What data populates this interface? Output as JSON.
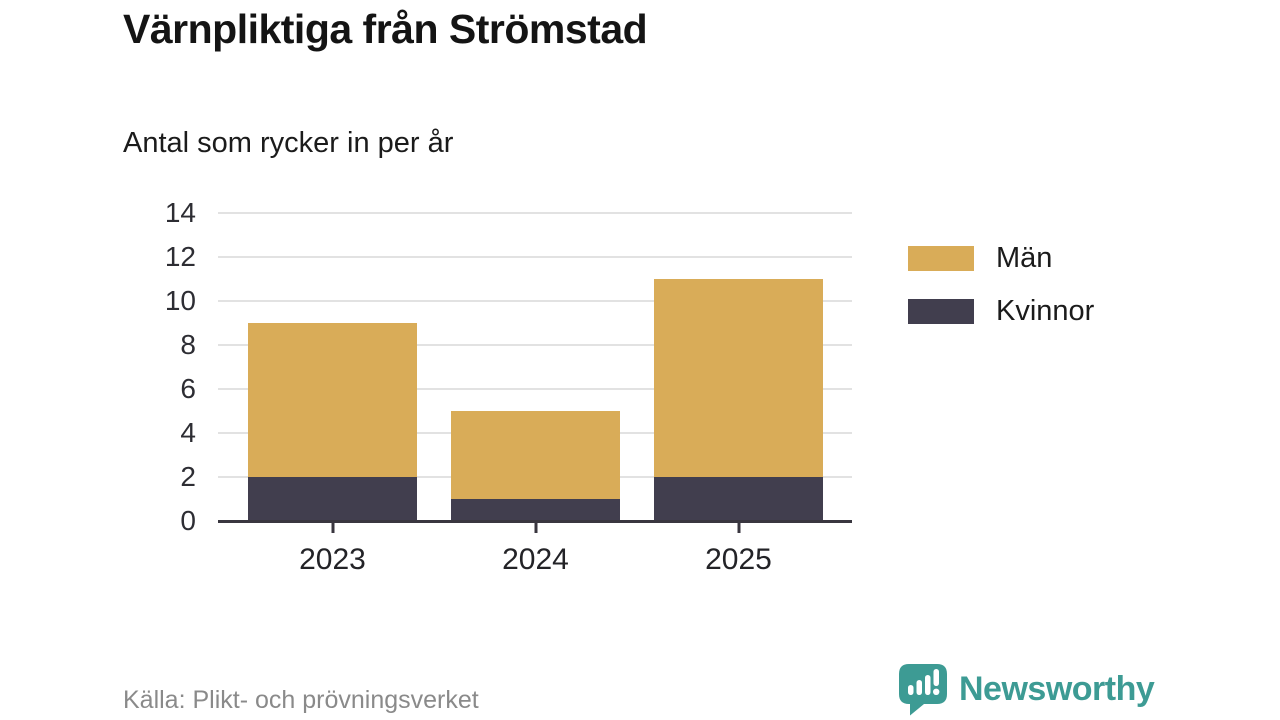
{
  "header": {
    "title": "Värnpliktiga från Strömstad",
    "subtitle": "Antal som rycker in per år"
  },
  "chart_data": {
    "type": "bar",
    "stacked": true,
    "title": "Värnpliktiga från Strömstad",
    "subtitle": "Antal som rycker in per år",
    "categories": [
      "2023",
      "2024",
      "2025"
    ],
    "series": [
      {
        "name": "Män",
        "values": [
          7,
          4,
          9
        ],
        "color": "#d9ac58"
      },
      {
        "name": "Kvinnor",
        "values": [
          2,
          1,
          2
        ],
        "color": "#413e4e"
      }
    ],
    "stack_totals": [
      9,
      5,
      11
    ],
    "xlabel": "",
    "ylabel": "",
    "ylim": [
      0,
      14
    ],
    "yticks": [
      0,
      2,
      4,
      6,
      8,
      10,
      12,
      14
    ],
    "grid": true,
    "legend_position": "right"
  },
  "footer": {
    "source": "Källa: Plikt- och prövningsverket",
    "brand": "Newsworthy"
  },
  "colors": {
    "men": "#d9ac58",
    "women": "#413e4e",
    "brand_teal": "#3d9b94",
    "grid": "#e2e2e2",
    "axis": "#39363f",
    "muted_text": "#8a8a8a"
  }
}
